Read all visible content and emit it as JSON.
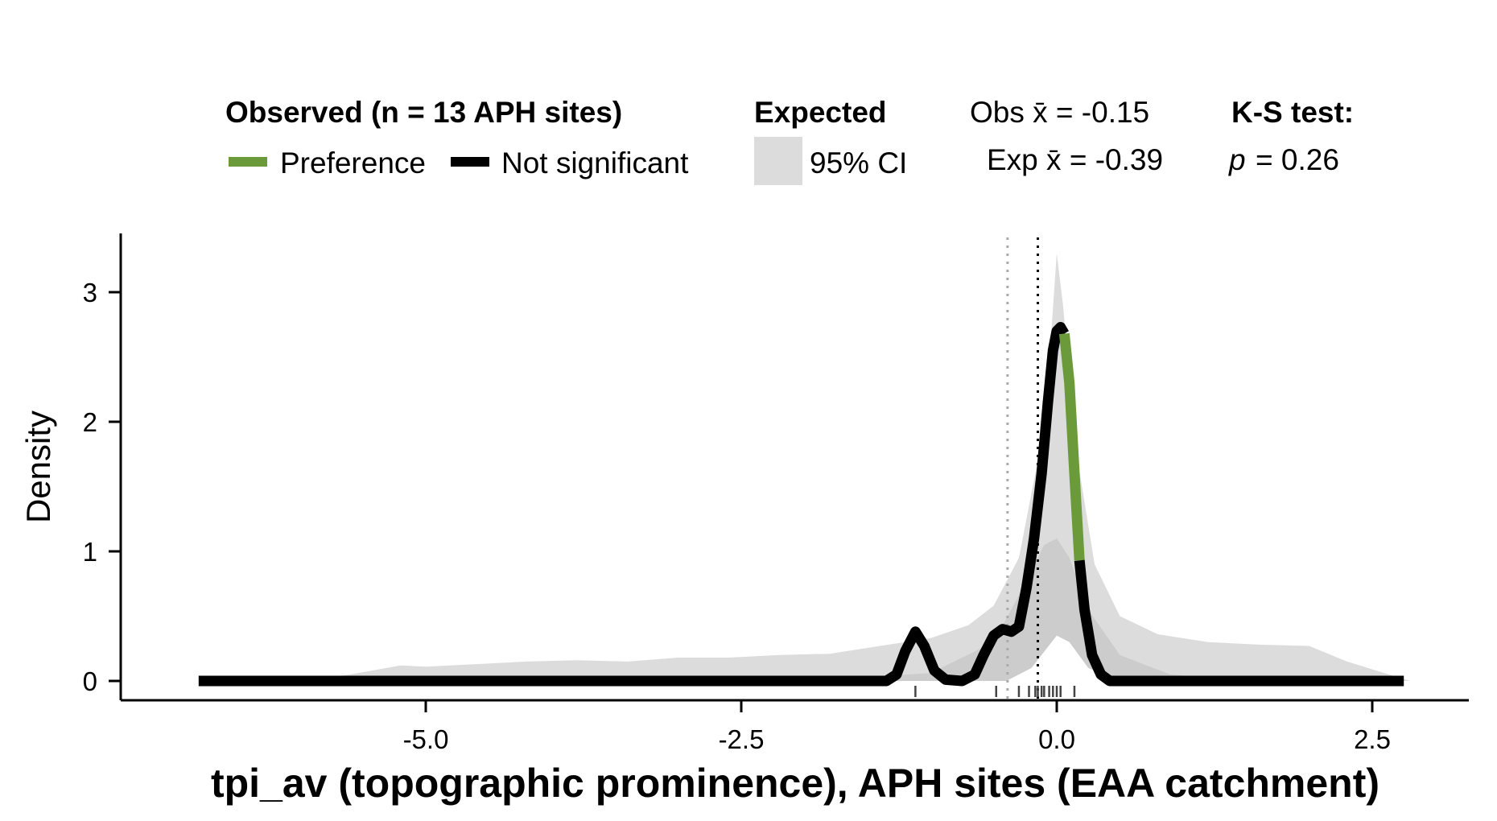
{
  "chart_data": {
    "type": "area",
    "xlabel": "tpi_av (topographic prominence), APH sites (EAA catchment)",
    "ylabel": "Density",
    "xlim": [
      -7.0,
      3.3
    ],
    "ylim": [
      -0.1,
      3.4
    ],
    "x_ticks": [
      -5.0,
      -2.5,
      0.0,
      2.5
    ],
    "x_tick_labels": [
      "-5.0",
      "-2.5",
      "0.0",
      "2.5"
    ],
    "y_ticks": [
      0,
      1,
      2,
      3
    ],
    "y_tick_labels": [
      "0",
      "1",
      "2",
      "3"
    ],
    "grid": false,
    "legend": {
      "placement": "top",
      "observed_title": "Observed (n = 13 APH sites)",
      "preference_label": "Preference",
      "not_significant_label": "Not significant",
      "expected_title": "Expected",
      "ci_label": "95% CI",
      "obs_mean_label": "Obs x̄ = -0.15",
      "exp_mean_label": "Exp x̄ = -0.39",
      "ks_title": "K-S test:",
      "ks_p_symbol": "p",
      "ks_p_value": "= 0.26"
    },
    "colors": {
      "preference": "#6a9a3a",
      "not_significant": "#000000",
      "ci_fill": "#dcdcdc",
      "ci_inner": "#cccccc",
      "obs_mean_line": "#000000",
      "exp_mean_line": "#aaaaaa"
    },
    "obs_mean": -0.15,
    "exp_mean": -0.39,
    "ci_upper": [
      [
        -6.0,
        0.0
      ],
      [
        -5.6,
        0.05
      ],
      [
        -5.2,
        0.12
      ],
      [
        -5.0,
        0.11
      ],
      [
        -4.6,
        0.13
      ],
      [
        -4.2,
        0.15
      ],
      [
        -3.8,
        0.16
      ],
      [
        -3.4,
        0.15
      ],
      [
        -3.0,
        0.18
      ],
      [
        -2.6,
        0.18
      ],
      [
        -2.2,
        0.2
      ],
      [
        -1.8,
        0.21
      ],
      [
        -1.4,
        0.27
      ],
      [
        -1.0,
        0.33
      ],
      [
        -0.7,
        0.43
      ],
      [
        -0.5,
        0.58
      ],
      [
        -0.3,
        0.95
      ],
      [
        -0.15,
        1.7
      ],
      [
        -0.05,
        2.6
      ],
      [
        0.0,
        3.3
      ],
      [
        0.05,
        2.9
      ],
      [
        0.15,
        1.8
      ],
      [
        0.3,
        0.9
      ],
      [
        0.5,
        0.5
      ],
      [
        0.8,
        0.36
      ],
      [
        1.2,
        0.3
      ],
      [
        1.6,
        0.28
      ],
      [
        2.0,
        0.27
      ],
      [
        2.3,
        0.15
      ],
      [
        2.7,
        0.03
      ],
      [
        2.8,
        0.0
      ]
    ],
    "ci_lower": [
      [
        -1.0,
        0.0
      ],
      [
        -0.4,
        0.0
      ],
      [
        -0.2,
        0.1
      ],
      [
        0.0,
        0.35
      ],
      [
        0.1,
        0.3
      ],
      [
        0.25,
        0.1
      ],
      [
        0.5,
        0.0
      ]
    ],
    "ci_median": [
      [
        -2.0,
        0.0
      ],
      [
        -1.0,
        0.06
      ],
      [
        -0.5,
        0.3
      ],
      [
        -0.25,
        0.75
      ],
      [
        -0.1,
        1.05
      ],
      [
        0.0,
        1.1
      ],
      [
        0.1,
        0.95
      ],
      [
        0.25,
        0.55
      ],
      [
        0.5,
        0.2
      ],
      [
        0.9,
        0.05
      ],
      [
        1.5,
        0.0
      ]
    ],
    "series": [
      {
        "name": "Not significant",
        "color": "#000000",
        "points": [
          [
            -6.8,
            0.0
          ],
          [
            -1.35,
            0.0
          ],
          [
            -1.27,
            0.05
          ],
          [
            -1.2,
            0.23
          ],
          [
            -1.12,
            0.38
          ],
          [
            -1.05,
            0.27
          ],
          [
            -0.97,
            0.08
          ],
          [
            -0.88,
            0.01
          ],
          [
            -0.75,
            0.0
          ],
          [
            -0.65,
            0.05
          ],
          [
            -0.58,
            0.2
          ],
          [
            -0.5,
            0.35
          ],
          [
            -0.43,
            0.4
          ],
          [
            -0.36,
            0.38
          ],
          [
            -0.3,
            0.42
          ],
          [
            -0.24,
            0.72
          ],
          [
            -0.18,
            1.1
          ],
          [
            -0.12,
            1.6
          ],
          [
            -0.07,
            2.15
          ],
          [
            -0.03,
            2.55
          ],
          [
            0.0,
            2.7
          ],
          [
            0.03,
            2.73
          ],
          [
            0.06,
            2.68
          ]
        ]
      },
      {
        "name": "Preference",
        "color": "#6a9a3a",
        "points": [
          [
            0.06,
            2.68
          ],
          [
            0.1,
            2.3
          ],
          [
            0.14,
            1.6
          ],
          [
            0.18,
            0.93
          ]
        ]
      },
      {
        "name": "Not significant",
        "color": "#000000",
        "points": [
          [
            0.18,
            0.93
          ],
          [
            0.22,
            0.55
          ],
          [
            0.28,
            0.2
          ],
          [
            0.35,
            0.05
          ],
          [
            0.42,
            0.0
          ],
          [
            2.75,
            0.0
          ]
        ]
      }
    ],
    "rug": [
      -1.12,
      -0.48,
      -0.3,
      -0.22,
      -0.17,
      -0.15,
      -0.12,
      -0.1,
      -0.06,
      -0.03,
      0.0,
      0.03,
      0.14
    ]
  }
}
